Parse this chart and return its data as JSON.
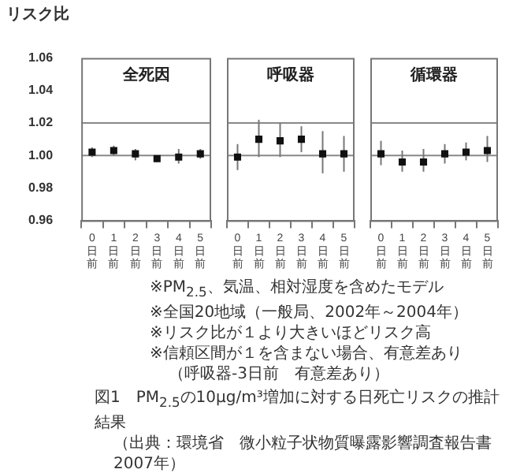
{
  "chart_data": [
    {
      "type": "scatter",
      "title": "全死因",
      "ylabel": "リスク比",
      "categories": [
        "0日前",
        "1日前",
        "2日前",
        "3日前",
        "4日前",
        "5日前"
      ],
      "values": [
        1.002,
        1.003,
        1.001,
        0.998,
        0.999,
        1.001
      ],
      "errors": [
        [
          0.999,
          1.005
        ],
        [
          1.0,
          1.006
        ],
        [
          0.997,
          1.004
        ],
        [
          0.996,
          1.0
        ],
        [
          0.995,
          1.004
        ],
        [
          0.998,
          1.004
        ]
      ],
      "color": "#111111",
      "marker": "square",
      "ylim": [
        0.96,
        1.06
      ],
      "yticks": [
        {
          "value": 0.96,
          "label": "0.96"
        },
        {
          "value": 0.98,
          "label": "0.98"
        },
        {
          "value": 1.0,
          "label": "1.00"
        },
        {
          "value": 1.02,
          "label": "1.02"
        },
        {
          "value": 1.04,
          "label": "1.04"
        },
        {
          "value": 1.06,
          "label": "1.06"
        }
      ],
      "ref_lines": [
        {
          "axis": "y",
          "value": 1.0,
          "color": "#888888"
        },
        {
          "axis": "y",
          "value": 1.02,
          "color": "#888888"
        }
      ],
      "grid": false,
      "legend": false,
      "annotations": [
        "※PM$_{2.5}$、気温、相対湿度を含めたモデル",
        "※全国20地域（一般局、2002年～2004年）",
        "※リスク比が１より大きいほどリスク高",
        "※信頼区間が１を含まない場合、有意差あり",
        "（呼吸器-3日前　有意差あり）",
        "図1　PM$_{2.5}$の10μg/m³増加に対する日死亡リスクの推計結果",
        "（出典：環境省　微小粒子状物質曝露影響調査報告書　2007年）"
      ]
    },
    {
      "type": "scatter",
      "title": "呼吸器",
      "categories": [
        "0日前",
        "1日前",
        "2日前",
        "3日前",
        "4日前",
        "5日前"
      ],
      "values": [
        0.999,
        1.01,
        1.009,
        1.01,
        1.001,
        1.001
      ],
      "errors": [
        [
          0.991,
          1.007
        ],
        [
          0.999,
          1.022
        ],
        [
          0.999,
          1.02
        ],
        [
          1.002,
          1.018
        ],
        [
          0.989,
          1.015
        ],
        [
          0.99,
          1.012
        ]
      ],
      "color": "#111111",
      "marker": "square",
      "ylim": [
        0.96,
        1.06
      ],
      "ref_lines": [
        {
          "axis": "y",
          "value": 1.0,
          "color": "#888888"
        },
        {
          "axis": "y",
          "value": 1.02,
          "color": "#888888"
        }
      ],
      "grid": false,
      "legend": false,
      "tick_labels": "x"
    },
    {
      "type": "scatter",
      "title": "循環器",
      "categories": [
        "0日前",
        "1日前",
        "2日前",
        "3日前",
        "4日前",
        "5日前"
      ],
      "values": [
        1.001,
        0.996,
        0.996,
        1.001,
        1.002,
        1.003
      ],
      "errors": [
        [
          0.994,
          1.009
        ],
        [
          0.99,
          1.003
        ],
        [
          0.99,
          1.004
        ],
        [
          0.995,
          1.007
        ],
        [
          0.997,
          1.008
        ],
        [
          0.996,
          1.012
        ]
      ],
      "color": "#111111",
      "marker": "square",
      "ylim": [
        0.96,
        1.06
      ],
      "ref_lines": [
        {
          "axis": "y",
          "value": 1.0,
          "color": "#888888"
        },
        {
          "axis": "y",
          "value": 1.02,
          "color": "#888888"
        }
      ],
      "grid": false,
      "legend": false,
      "tick_labels": "x"
    }
  ]
}
